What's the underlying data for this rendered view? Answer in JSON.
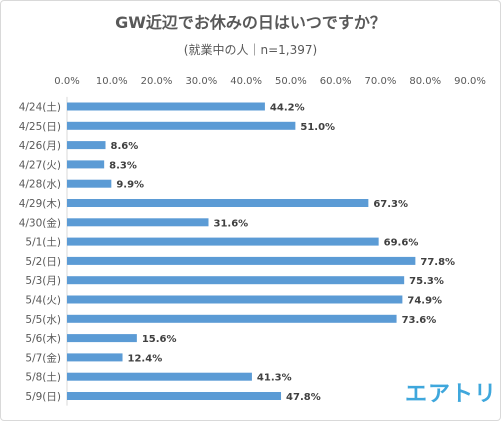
{
  "brand": "エアトリ",
  "chart_data": {
    "type": "bar",
    "orientation": "horizontal",
    "title": "GW近辺でお休みの日はいつですか？",
    "subtitle": "(就業中の人｜n=1,397)",
    "xlim": [
      0,
      90
    ],
    "x_ticks": [
      "0.0%",
      "10.0%",
      "20.0%",
      "30.0%",
      "40.0%",
      "50.0%",
      "60.0%",
      "70.0%",
      "80.0%",
      "90.0%"
    ],
    "x_tick_position": "top",
    "bar_color": "#5b9bd5",
    "categories": [
      "4/24(土)",
      "4/25(日)",
      "4/26(月)",
      "4/27(火)",
      "4/28(水)",
      "4/29(木)",
      "4/30(金)",
      "5/1(土)",
      "5/2(日)",
      "5/3(月)",
      "5/4(火)",
      "5/5(水)",
      "5/6(木)",
      "5/7(金)",
      "5/8(土)",
      "5/9(日)"
    ],
    "values": [
      44.2,
      51.0,
      8.6,
      8.3,
      9.9,
      67.3,
      31.6,
      69.6,
      77.8,
      75.3,
      74.9,
      73.6,
      15.6,
      12.4,
      41.3,
      47.8
    ],
    "data_labels": [
      "44.2%",
      "51.0%",
      "8.6%",
      "8.3%",
      "9.9%",
      "67.3%",
      "31.6%",
      "69.6%",
      "77.8%",
      "75.3%",
      "74.9%",
      "73.6%",
      "15.6%",
      "12.4%",
      "41.3%",
      "47.8%"
    ]
  }
}
